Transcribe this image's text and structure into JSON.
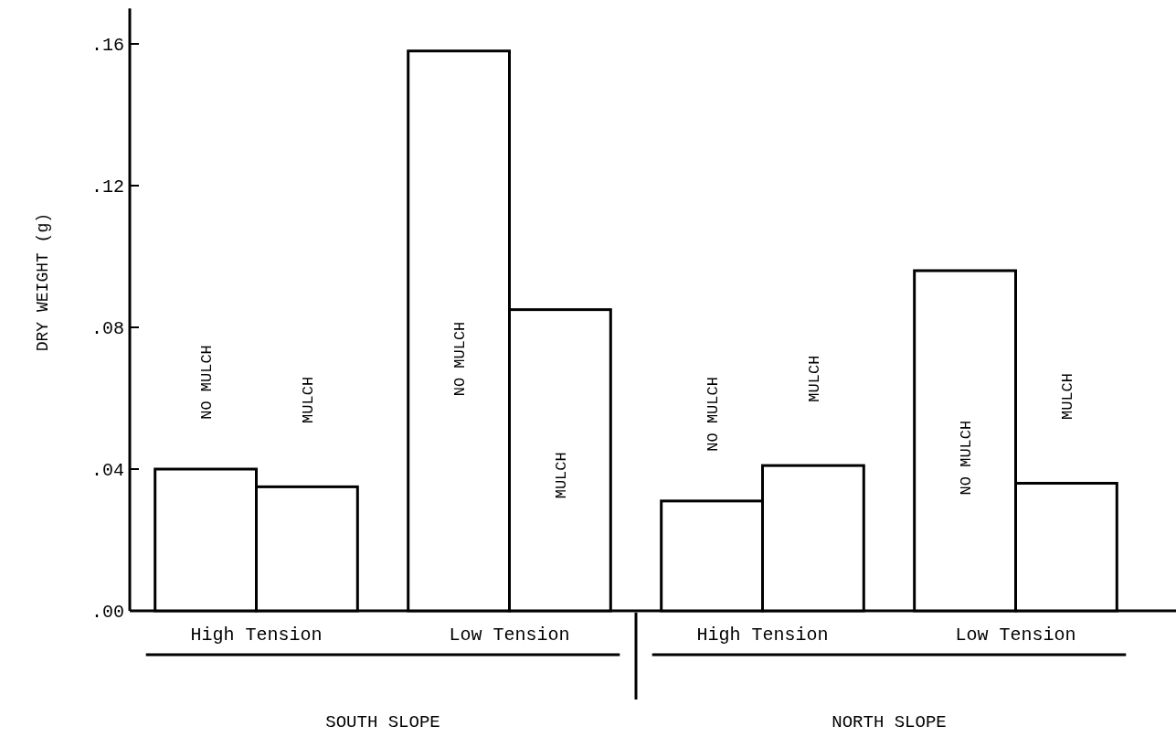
{
  "chart_data": {
    "type": "bar",
    "ylabel": "DRY WEIGHT (g)",
    "categories": [
      "High Tension",
      "Low Tension",
      "High Tension",
      "Low Tension"
    ],
    "series": [
      {
        "name": "NO MULCH",
        "color": "#ffffff",
        "values": [
          0.04,
          0.158,
          0.031,
          0.096
        ]
      },
      {
        "name": "MULCH",
        "color": "#ffffff",
        "values": [
          0.035,
          0.085,
          0.041,
          0.036
        ]
      }
    ],
    "ylim": [
      0,
      0.17
    ],
    "yticks": [
      {
        "value": 0,
        "label": ".00"
      },
      {
        "value": 0.04,
        "label": ".04"
      },
      {
        "value": 0.08,
        "label": ".08"
      },
      {
        "value": 0.12,
        "label": ".12"
      },
      {
        "value": 0.16,
        "label": ".16"
      }
    ],
    "grid": false,
    "annotations": [
      "SOUTH SLOPE",
      "NORTH SLOPE"
    ]
  }
}
